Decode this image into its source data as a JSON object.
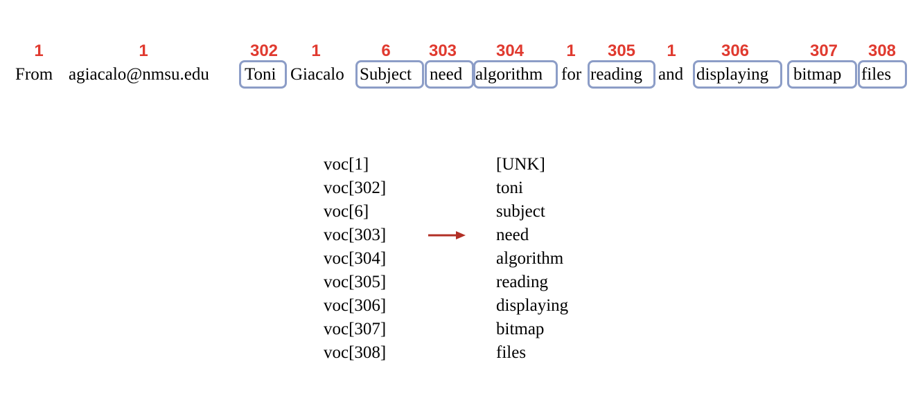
{
  "tokens": [
    {
      "word": "From",
      "id": "1",
      "boxed": false
    },
    {
      "word": "agiacalo@nmsu.edu",
      "id": "1",
      "boxed": false
    },
    {
      "word": "Toni",
      "id": "302",
      "boxed": true
    },
    {
      "word": "Giacalo",
      "id": "1",
      "boxed": false
    },
    {
      "word": "Subject",
      "id": "6",
      "boxed": true
    },
    {
      "word": "need",
      "id": "303",
      "boxed": true
    },
    {
      "word": "algorithm",
      "id": "304",
      "boxed": true
    },
    {
      "word": "for",
      "id": "1",
      "boxed": false
    },
    {
      "word": "reading",
      "id": "305",
      "boxed": true
    },
    {
      "word": "and",
      "id": "1",
      "boxed": false
    },
    {
      "word": "displaying",
      "id": "306",
      "boxed": true
    },
    {
      "word": "bitmap",
      "id": "307",
      "boxed": true
    },
    {
      "word": "files",
      "id": "308",
      "boxed": true
    }
  ],
  "vocab": [
    {
      "key": "voc[1]",
      "value": "[UNK]"
    },
    {
      "key": "voc[302]",
      "value": "toni"
    },
    {
      "key": "voc[6]",
      "value": "subject"
    },
    {
      "key": "voc[303]",
      "value": "need"
    },
    {
      "key": "voc[304]",
      "value": "algorithm"
    },
    {
      "key": "voc[305]",
      "value": "reading"
    },
    {
      "key": "voc[306]",
      "value": "displaying"
    },
    {
      "key": "voc[307]",
      "value": "bitmap"
    },
    {
      "key": "voc[308]",
      "value": "files"
    }
  ],
  "colors": {
    "id_text": "#e03a2f",
    "box_border": "#8c9dc7",
    "arrow": "#b22f25"
  }
}
